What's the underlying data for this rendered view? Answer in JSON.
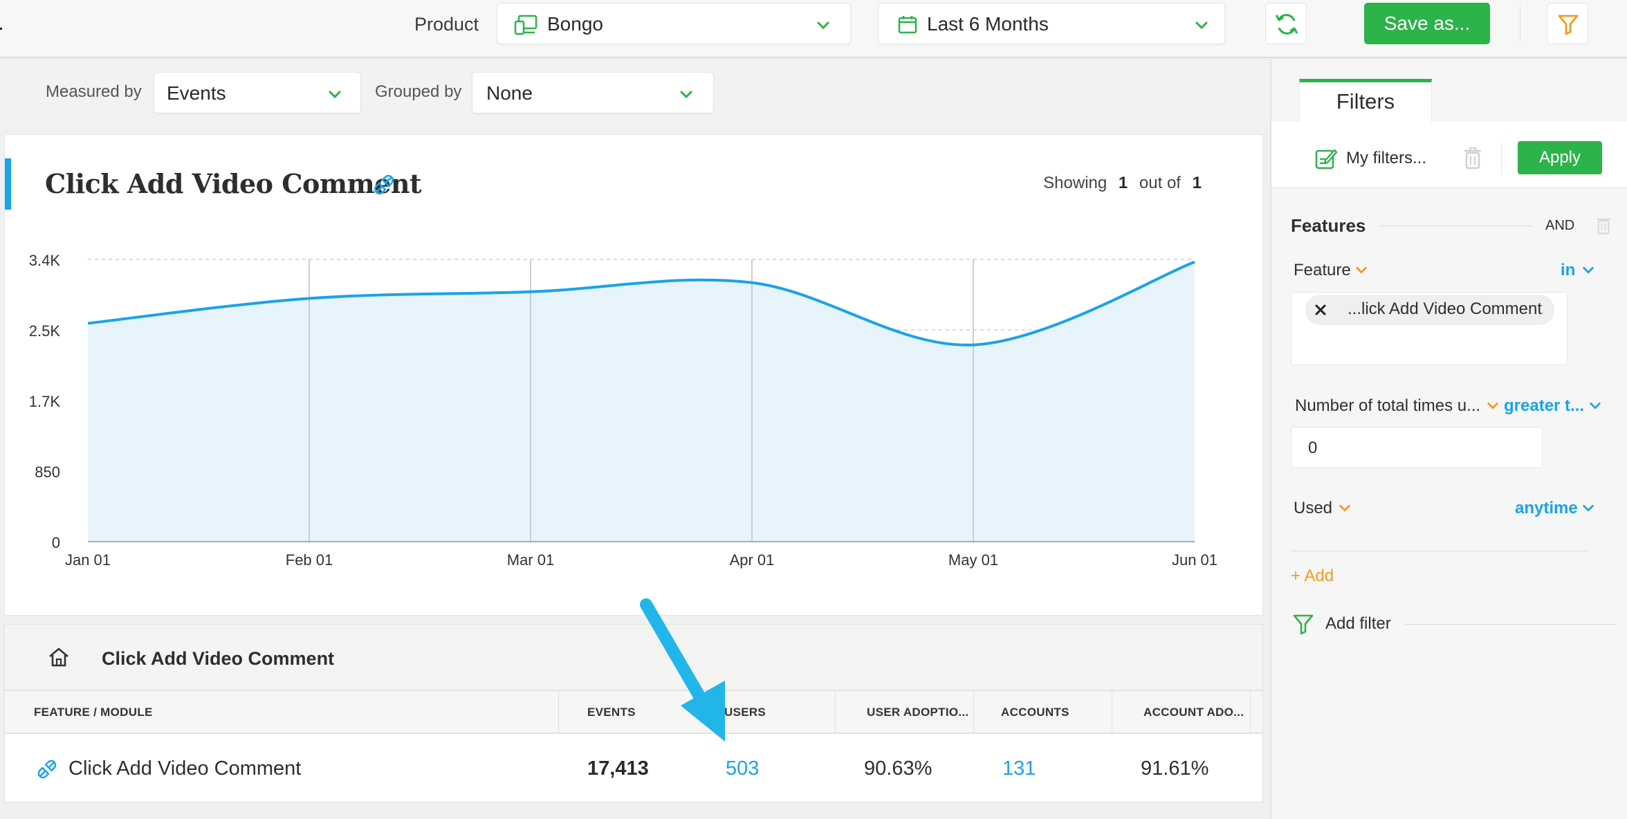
{
  "header": {
    "product_label": "Product",
    "product_value": "Bongo",
    "date_value": "Last 6 Months",
    "save_label": "Save as..."
  },
  "measure": {
    "measured_by_label": "Measured by",
    "measured_by_value": "Events",
    "grouped_by_label": "Grouped by",
    "grouped_by_value": "None"
  },
  "chart": {
    "title": "Click Add Video Comment",
    "showing_prefix": "Showing",
    "showing_count": "1",
    "showing_mid": "out of",
    "showing_total": "1"
  },
  "chart_data": {
    "type": "area",
    "x": [
      "Jan 01",
      "Feb 01",
      "Mar 01",
      "Apr 01",
      "May 01",
      "Jun 01"
    ],
    "series": [
      {
        "values": [
          2630,
          2930,
          3010,
          3120,
          2370,
          3370
        ]
      }
    ],
    "yticks": [
      "0",
      "850",
      "1.7K",
      "2.5K",
      "3.4K"
    ],
    "ylim": [
      0,
      3400
    ],
    "grid": true,
    "colors": {
      "line": "#1aa3e8",
      "fill": "#e8f4fc"
    }
  },
  "table": {
    "header_title": "Click Add Video Comment",
    "columns": [
      "FEATURE / MODULE",
      "EVENTS",
      "USERS",
      "USER ADOPTIO...",
      "ACCOUNTS",
      "ACCOUNT ADO..."
    ],
    "rows": [
      {
        "feature": "Click Add Video Comment",
        "events": "17,413",
        "users": "503",
        "user_adoption": "90.63%",
        "accounts": "131",
        "account_adoption": "91.61%"
      }
    ]
  },
  "filters": {
    "tab_label": "Filters",
    "my_filters_label": "My filters...",
    "apply_label": "Apply",
    "features_label": "Features",
    "and_label": "AND",
    "feature_label": "Feature",
    "feature_op": "in",
    "feature_chip": "...lick Add Video Comment",
    "times_label": "Number of total times u...",
    "times_op": "greater t...",
    "times_value": "0",
    "used_label": "Used",
    "used_op": "anytime",
    "add_label": "+ Add",
    "add_filter_label": "Add filter"
  },
  "colors": {
    "accent_green": "#2cb34a",
    "accent_blue": "#1aa3e8",
    "accent_orange": "#f39c1a",
    "annotation_arrow": "#22b5ea"
  },
  "icons": [
    "device-icon",
    "calendar-icon",
    "refresh-icon",
    "filter-funnel-icon",
    "plug-icon",
    "home-icon",
    "edit-icon",
    "trash-icon",
    "chevron-down-icon",
    "close-icon"
  ]
}
